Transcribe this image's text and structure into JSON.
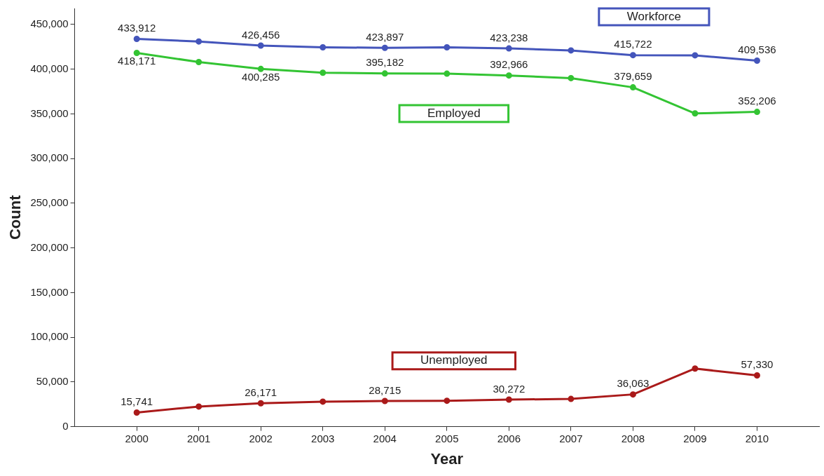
{
  "chart_data": {
    "type": "line",
    "xlabel": "Year",
    "ylabel": "Count",
    "x": [
      2000,
      2001,
      2002,
      2003,
      2004,
      2005,
      2006,
      2007,
      2008,
      2009,
      2010
    ],
    "xlim": [
      1999,
      2011
    ],
    "xticks": [
      2000,
      2001,
      2002,
      2003,
      2004,
      2005,
      2006,
      2007,
      2008,
      2009,
      2010
    ],
    "ylim": [
      0,
      468000
    ],
    "yticks": [
      {
        "value": 0,
        "label": "0"
      },
      {
        "value": 50000,
        "label": "50,000"
      },
      {
        "value": 100000,
        "label": "100,000"
      },
      {
        "value": 150000,
        "label": "150,000"
      },
      {
        "value": 200000,
        "label": "200,000"
      },
      {
        "value": 250000,
        "label": "250,000"
      },
      {
        "value": 300000,
        "label": "300,000"
      },
      {
        "value": 350000,
        "label": "350,000"
      },
      {
        "value": 400000,
        "label": "400,000"
      },
      {
        "value": 450000,
        "label": "450,000"
      }
    ],
    "series": [
      {
        "name": "Workforce",
        "color": "#4455bb",
        "values": [
          433912,
          431000,
          426456,
          424500,
          423897,
          424500,
          423238,
          421000,
          415722,
          415500,
          409536
        ],
        "value_labels": [
          "433,912",
          null,
          "426,456",
          null,
          "423,897",
          null,
          "423,238",
          null,
          "415,722",
          null,
          "409,536"
        ]
      },
      {
        "name": "Employed",
        "color": "#33c433",
        "values": [
          418171,
          408000,
          400285,
          396000,
          395182,
          395000,
          392966,
          390000,
          379659,
          350500,
          352206
        ],
        "value_labels": [
          "418,171",
          null,
          "400,285",
          null,
          "395,182",
          null,
          "392,966",
          null,
          "379,659",
          null,
          "352,206"
        ]
      },
      {
        "name": "Unemployed",
        "color": "#aa1a1a",
        "values": [
          15741,
          22500,
          26171,
          28000,
          28715,
          29000,
          30272,
          31000,
          36063,
          65000,
          57330
        ],
        "value_labels": [
          "15,741",
          null,
          "26,171",
          null,
          "28,715",
          null,
          "30,272",
          null,
          "36,063",
          null,
          "57,330"
        ]
      }
    ],
    "grid": false,
    "legend": false,
    "marker": "circle",
    "line_style": "solid"
  }
}
